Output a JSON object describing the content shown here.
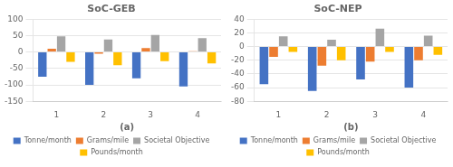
{
  "chart_data": [
    {
      "type": "bar",
      "title": "SoC-GEB",
      "xlabel": "(a)",
      "categories": [
        "1",
        "2",
        "3",
        "4"
      ],
      "series": [
        {
          "name": "Tonne/month",
          "color": "#4472c4",
          "values": [
            -75,
            -100,
            -80,
            -105
          ]
        },
        {
          "name": "Grams/mile",
          "color": "#ed7d31",
          "values": [
            10,
            -5,
            12,
            2
          ]
        },
        {
          "name": "Societal Objective",
          "color": "#a5a5a5",
          "values": [
            48,
            38,
            52,
            42
          ]
        },
        {
          "name": "Pounds/month",
          "color": "#ffc000",
          "values": [
            -30,
            -40,
            -28,
            -35
          ]
        }
      ],
      "ylim": [
        -150,
        100
      ],
      "yticks": [
        -150,
        -100,
        -50,
        0,
        50,
        100
      ],
      "grid": true,
      "legend": "bottom"
    },
    {
      "type": "bar",
      "title": "SoC-NEP",
      "xlabel": "(b)",
      "categories": [
        "1",
        "2",
        "3",
        "4"
      ],
      "series": [
        {
          "name": "Tonne/month",
          "color": "#4472c4",
          "values": [
            -55,
            -65,
            -48,
            -60
          ]
        },
        {
          "name": "Grams/mile",
          "color": "#ed7d31",
          "values": [
            -15,
            -28,
            -22,
            -20
          ]
        },
        {
          "name": "Societal Objective",
          "color": "#a5a5a5",
          "values": [
            15,
            10,
            26,
            16
          ]
        },
        {
          "name": "Pounds/month",
          "color": "#ffc000",
          "values": [
            -8,
            -20,
            -8,
            -12
          ]
        }
      ],
      "ylim": [
        -80,
        40
      ],
      "yticks": [
        -80,
        -60,
        -40,
        -20,
        0,
        20,
        40
      ],
      "grid": true,
      "legend": "bottom"
    }
  ]
}
